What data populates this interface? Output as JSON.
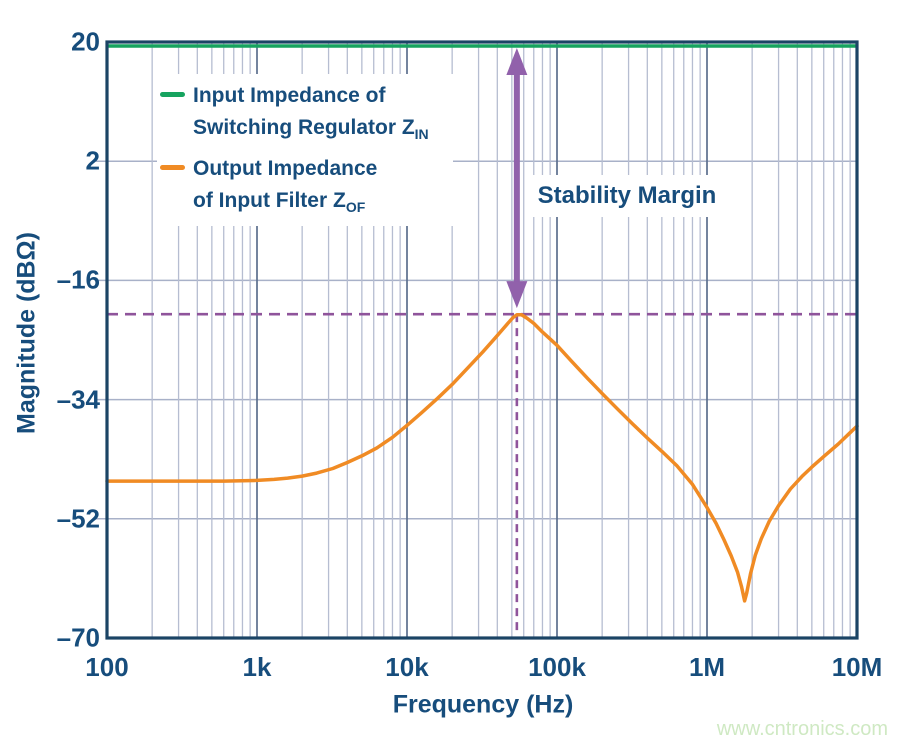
{
  "watermark": "www.cntronics.com",
  "colors": {
    "navy_text": "#174d7c",
    "plot_border": "#1b4465",
    "grid_minor": "#b6bdd1",
    "grid_major_decade": "#5c6f8d",
    "grid_horizontal": "#a8b1c8",
    "zin_green": "#16a35f",
    "zof_orange": "#f08b24",
    "annotation_purple": "#9161ab",
    "guide_dash_purple": "#8f549b",
    "watermark_green": "#cfe9c3"
  },
  "legend": {
    "items": [
      {
        "line1": "Input Impedance of",
        "line2": "Switching Regulator Z",
        "sub": "IN",
        "swatch": "zin_green"
      },
      {
        "line1": "Output Impedance",
        "line2": "of Input Filter Z",
        "sub": "OF",
        "swatch": "zof_orange"
      }
    ]
  },
  "chart_data": {
    "type": "line",
    "title": "",
    "xlabel": "Frequency (Hz)",
    "ylabel": "Magnitude (dBΩ)",
    "x_scale": "log",
    "x_range_hz": [
      100,
      10000000
    ],
    "ylim": [
      -70,
      20
    ],
    "grid": true,
    "legend_position": "top-left-inside",
    "x_ticks": [
      {
        "value": 100,
        "label": "100"
      },
      {
        "value": 1000,
        "label": "1k"
      },
      {
        "value": 10000,
        "label": "10k"
      },
      {
        "value": 100000,
        "label": "100k"
      },
      {
        "value": 1000000,
        "label": "1M"
      },
      {
        "value": 10000000,
        "label": "10M"
      }
    ],
    "y_ticks": [
      {
        "value": 20,
        "label": "20"
      },
      {
        "value": 2,
        "label": "2"
      },
      {
        "value": -16,
        "label": "–16"
      },
      {
        "value": -34,
        "label": "–34"
      },
      {
        "value": -52,
        "label": "–52"
      },
      {
        "value": -70,
        "label": "–70"
      }
    ],
    "series": [
      {
        "name": "Input Impedance of Switching Regulator Z_IN",
        "color_key": "zin_green",
        "points": [
          [
            100,
            20
          ],
          [
            10000000,
            20
          ]
        ]
      },
      {
        "name": "Output Impedance of Input Filter Z_OF",
        "color_key": "zof_orange",
        "points": [
          [
            100,
            -46.3
          ],
          [
            150,
            -46.3
          ],
          [
            250,
            -46.3
          ],
          [
            400,
            -46.3
          ],
          [
            600,
            -46.3
          ],
          [
            800,
            -46.25
          ],
          [
            1000,
            -46.2
          ],
          [
            1300,
            -46.05
          ],
          [
            1600,
            -45.85
          ],
          [
            2000,
            -45.55
          ],
          [
            2500,
            -45.1
          ],
          [
            3200,
            -44.4
          ],
          [
            4000,
            -43.5
          ],
          [
            5000,
            -42.5
          ],
          [
            6300,
            -41.3
          ],
          [
            8000,
            -39.7
          ],
          [
            10000,
            -37.9
          ],
          [
            12500,
            -36.0
          ],
          [
            16000,
            -33.8
          ],
          [
            20000,
            -31.7
          ],
          [
            25000,
            -29.4
          ],
          [
            32000,
            -26.8
          ],
          [
            38000,
            -24.9
          ],
          [
            43000,
            -23.5
          ],
          [
            47000,
            -22.5
          ],
          [
            51000,
            -21.6
          ],
          [
            54000,
            -21.2
          ],
          [
            58000,
            -21.2
          ],
          [
            63000,
            -21.7
          ],
          [
            70000,
            -22.5
          ],
          [
            80000,
            -23.8
          ],
          [
            100000,
            -25.8
          ],
          [
            125000,
            -28.2
          ],
          [
            160000,
            -30.8
          ],
          [
            200000,
            -33.1
          ],
          [
            250000,
            -35.3
          ],
          [
            320000,
            -37.7
          ],
          [
            400000,
            -39.8
          ],
          [
            500000,
            -41.8
          ],
          [
            630000,
            -44.0
          ],
          [
            800000,
            -46.8
          ],
          [
            1000000,
            -50.3
          ],
          [
            1150000,
            -52.7
          ],
          [
            1300000,
            -55.2
          ],
          [
            1450000,
            -57.6
          ],
          [
            1600000,
            -60.1
          ],
          [
            1700000,
            -62.3
          ],
          [
            1780000,
            -64.4
          ],
          [
            1840000,
            -63.2
          ],
          [
            1950000,
            -60.3
          ],
          [
            2100000,
            -57.5
          ],
          [
            2300000,
            -55.0
          ],
          [
            2600000,
            -52.4
          ],
          [
            3000000,
            -50.0
          ],
          [
            3600000,
            -47.5
          ],
          [
            4300000,
            -45.6
          ],
          [
            5000000,
            -44.2
          ],
          [
            6000000,
            -42.6
          ],
          [
            7500000,
            -40.7
          ],
          [
            9000000,
            -39.0
          ],
          [
            10000000,
            -38.0
          ]
        ]
      }
    ],
    "annotations": {
      "stability_margin": {
        "label": "Stability Margin",
        "freq_hz": 54000,
        "from_db": 20,
        "to_db": -21.1,
        "style": "double-headed-arrow"
      },
      "peak_guides": {
        "horizontal_db": -21.1,
        "vertical_hz": 54000,
        "style": "dashed"
      }
    }
  }
}
